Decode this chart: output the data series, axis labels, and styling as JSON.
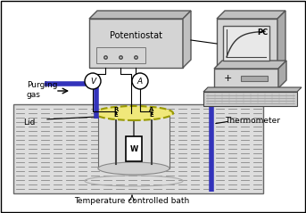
{
  "bg_color": "#ffffff",
  "border_color": "#000000",
  "fig_width": 3.43,
  "fig_height": 2.39,
  "dpi": 100,
  "labels": {
    "purging_gas": "Purging\ngas",
    "lid": "Lid",
    "thermometer": "Thermometer",
    "temperature_bath": "Temperature controlled bath",
    "potentiostat": "Potentiostat",
    "pc": "PC",
    "RE": "R\nE",
    "AE": "A\nE",
    "WE": "W",
    "V": "V",
    "A": "A"
  },
  "colors": {
    "box_fill": "#d4d4d4",
    "box_edge": "#555555",
    "bath_hatch_color": "#888888",
    "electrode_lid_fill": "#f0e87a",
    "electrode_lid_edge": "#888800",
    "cell_fill": "#e8e8e8",
    "we_fill": "#ffffff",
    "purging_tube": "#3333bb",
    "thermometer_tube": "#3333bb",
    "wire_color": "#000000",
    "circle_fill": "#ffffff",
    "bath_line": "#555555",
    "bath_fill": "#dddddd"
  }
}
